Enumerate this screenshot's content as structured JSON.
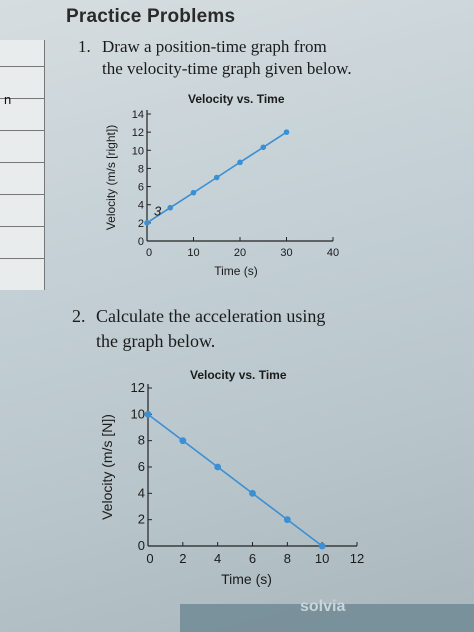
{
  "heading": "Practice Problems",
  "problem1": {
    "number": "1.",
    "line1": "Draw a position-time graph from",
    "line2": "the velocity-time graph given below."
  },
  "problem2": {
    "number": "2.",
    "line1": "Calculate the acceleration using",
    "line2": "the graph below."
  },
  "left_mark": "n",
  "watermark": "solvia",
  "chart_data": [
    {
      "type": "line",
      "title": "Velocity vs. Time",
      "xlabel": "Time (s)",
      "ylabel": "Velocity (m/s [right])",
      "xticks": [
        "0",
        "10",
        "20",
        "30",
        "40"
      ],
      "yticks": [
        "0",
        "2",
        "4",
        "6",
        "8",
        "10",
        "12",
        "14"
      ],
      "xlim": [
        0,
        40
      ],
      "ylim": [
        0,
        14
      ],
      "series": [
        {
          "x": [
            0,
            5,
            10,
            15,
            20,
            25,
            30
          ],
          "y": [
            2,
            3.67,
            5.33,
            7,
            8.67,
            10.33,
            12
          ]
        }
      ],
      "annotation": "3",
      "color": "#3b8fd4"
    },
    {
      "type": "line",
      "title": "Velocity vs. Time",
      "xlabel": "Time (s)",
      "ylabel": "Velocity (m/s [N])",
      "xticks": [
        "0",
        "2",
        "4",
        "6",
        "8",
        "10",
        "12"
      ],
      "yticks": [
        "0",
        "2",
        "4",
        "6",
        "8",
        "10",
        "12"
      ],
      "xlim": [
        0,
        12
      ],
      "ylim": [
        0,
        12
      ],
      "series": [
        {
          "x": [
            0,
            2,
            4,
            6,
            8,
            10
          ],
          "y": [
            10,
            8,
            6,
            4,
            2,
            0
          ]
        }
      ],
      "color": "#3b8fd4"
    }
  ]
}
